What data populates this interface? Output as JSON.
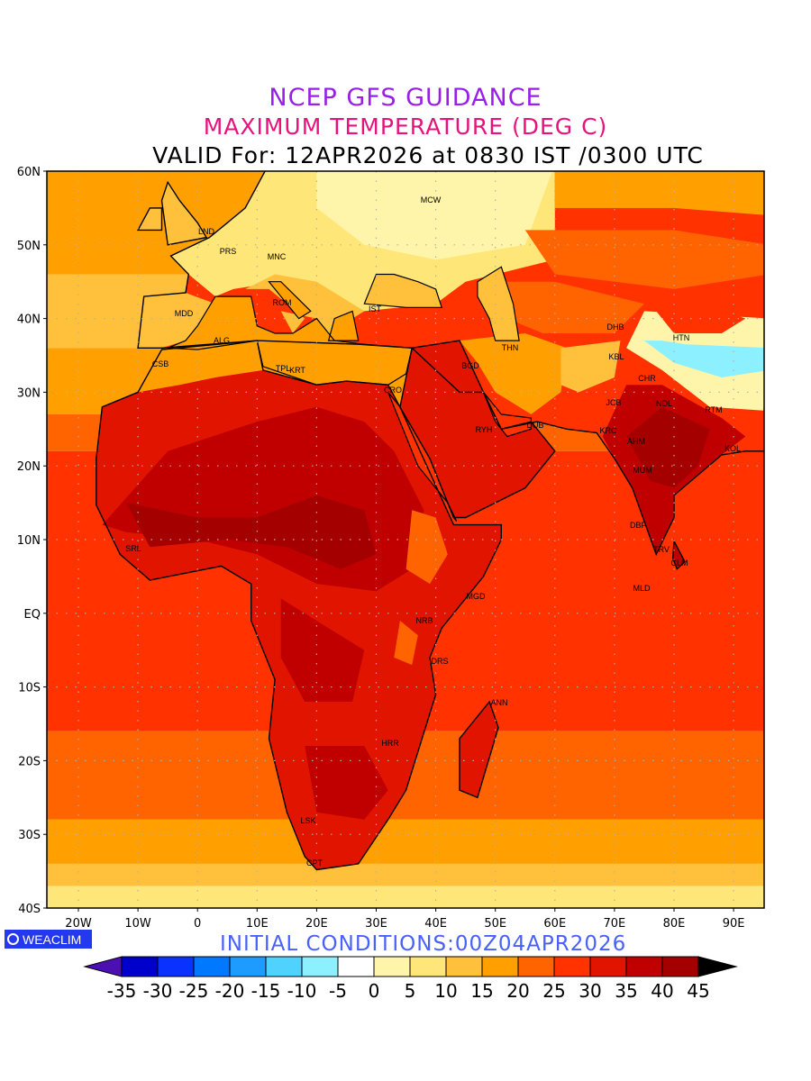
{
  "title": {
    "line1": "NCEP GFS GUIDANCE",
    "line2": "MAXIMUM TEMPERATURE (DEG C)",
    "line3": "VALID For: 12APR2026 at 0830 IST /0300 UTC"
  },
  "axes": {
    "lat_labels": [
      "60N",
      "50N",
      "40N",
      "30N",
      "20N",
      "10N",
      "EQ",
      "10S",
      "20S",
      "30S",
      "40S"
    ],
    "lon_labels": [
      "20W",
      "10W",
      "0",
      "10E",
      "20E",
      "30E",
      "40E",
      "50E",
      "60E",
      "70E",
      "80E",
      "90E"
    ]
  },
  "stations": [
    "MCW",
    "LND",
    "PRS",
    "MNC",
    "ROM",
    "IST",
    "MDD",
    "ALG",
    "CSB",
    "TPL",
    "KRT",
    "CRO",
    "BGD",
    "THN",
    "DHB",
    "KBL",
    "HTN",
    "CHR",
    "JCB",
    "NDL",
    "RTM",
    "RYH",
    "DUB",
    "KRC",
    "AHM",
    "KOL",
    "MUM",
    "DBF",
    "TRV",
    "CLM",
    "MLD",
    "SRL",
    "MGD",
    "NRB",
    "DRS",
    "ANN",
    "HRR",
    "LSK",
    "CPT"
  ],
  "logo": "WEACLIM",
  "initial_conditions": "INITIAL  CONDITIONS:00Z04APR2026",
  "colorbar": {
    "labels": [
      "-35",
      "-30",
      "-25",
      "-20",
      "-15",
      "-10",
      "-5",
      "0",
      "5",
      "10",
      "15",
      "20",
      "25",
      "30",
      "35",
      "40",
      "45"
    ],
    "colors": [
      "#4b0fb4",
      "#0000cc",
      "#0a32ff",
      "#0078ff",
      "#1e9bff",
      "#50d2ff",
      "#8cf0ff",
      "#ffffff",
      "#fff5aa",
      "#ffe678",
      "#ffc03c",
      "#ffa000",
      "#ff6400",
      "#ff3200",
      "#e11400",
      "#c00000",
      "#a50000",
      "#000000"
    ]
  }
}
